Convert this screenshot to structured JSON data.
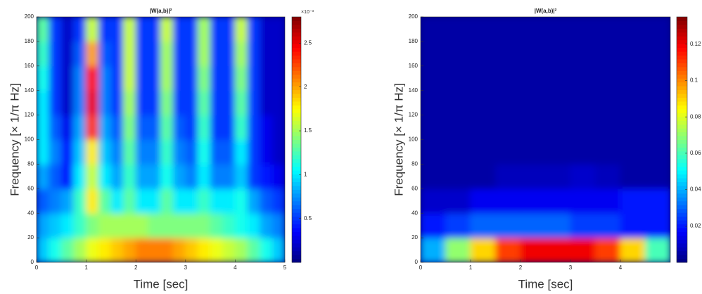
{
  "chart_data": [
    {
      "type": "heatmap",
      "title": "|W(a,b)|²",
      "xlabel": "Time [sec]",
      "ylabel": "Frequency [× 1/π Hz]",
      "colorbar_scale_label": "×10⁻³",
      "xlim": [
        0,
        5
      ],
      "ylim": [
        0,
        200
      ],
      "clim": [
        0,
        2.8
      ],
      "xticks": [
        0,
        1,
        2,
        3,
        4,
        5
      ],
      "yticks": [
        0,
        20,
        40,
        60,
        80,
        100,
        120,
        140,
        160,
        180,
        200
      ],
      "cticks": [
        0.5,
        1,
        1.5,
        2,
        2.5
      ],
      "x": [
        0.125,
        0.375,
        0.625,
        0.875,
        1.125,
        1.375,
        1.625,
        1.875,
        2.125,
        2.375,
        2.625,
        2.875,
        3.125,
        3.375,
        3.625,
        3.875,
        4.125,
        4.375,
        4.625,
        4.875
      ],
      "y": [
        10,
        30,
        50,
        70,
        90,
        110,
        130,
        150,
        170,
        190
      ],
      "values": [
        [
          0.9,
          1.1,
          1.3,
          1.5,
          1.7,
          1.8,
          1.9,
          2.0,
          2.1,
          2.1,
          2.1,
          2.0,
          1.9,
          1.8,
          1.7,
          1.6,
          1.5,
          1.3,
          1.1,
          0.9
        ],
        [
          0.8,
          0.9,
          1.0,
          1.2,
          1.4,
          1.5,
          1.5,
          1.5,
          1.5,
          1.4,
          1.4,
          1.4,
          1.4,
          1.4,
          1.3,
          1.2,
          1.1,
          1.0,
          0.8,
          0.7
        ],
        [
          0.6,
          0.7,
          0.8,
          1.2,
          1.8,
          1.3,
          1.0,
          1.3,
          1.0,
          1.0,
          1.3,
          1.0,
          1.0,
          1.2,
          1.0,
          1.0,
          1.1,
          0.8,
          0.6,
          0.5
        ],
        [
          0.8,
          0.6,
          0.4,
          1.0,
          1.6,
          1.0,
          0.8,
          1.2,
          0.8,
          0.8,
          1.1,
          0.8,
          0.7,
          1.0,
          0.7,
          0.7,
          0.9,
          0.5,
          0.4,
          0.3
        ],
        [
          1.0,
          0.7,
          0.4,
          0.9,
          1.8,
          0.9,
          0.7,
          1.3,
          0.7,
          0.7,
          1.2,
          0.7,
          0.6,
          1.1,
          0.6,
          0.6,
          1.0,
          0.5,
          0.3,
          0.2
        ],
        [
          1.0,
          0.6,
          0.3,
          0.8,
          2.3,
          0.8,
          0.6,
          1.4,
          0.6,
          0.6,
          1.3,
          0.6,
          0.5,
          1.2,
          0.5,
          0.5,
          1.2,
          0.5,
          0.3,
          0.2
        ],
        [
          1.0,
          0.5,
          0.2,
          0.7,
          2.5,
          0.7,
          0.5,
          1.5,
          0.5,
          0.5,
          1.4,
          0.5,
          0.5,
          1.3,
          0.5,
          0.5,
          1.3,
          0.5,
          0.2,
          0.2
        ],
        [
          1.1,
          0.5,
          0.2,
          0.7,
          2.4,
          0.7,
          0.5,
          1.6,
          0.5,
          0.5,
          1.5,
          0.5,
          0.5,
          1.4,
          0.5,
          0.5,
          1.4,
          0.5,
          0.2,
          0.2
        ],
        [
          1.2,
          0.5,
          0.2,
          0.6,
          2.0,
          0.6,
          0.5,
          1.6,
          0.5,
          0.5,
          1.5,
          0.5,
          0.5,
          1.5,
          0.5,
          0.5,
          1.5,
          0.5,
          0.2,
          0.2
        ],
        [
          1.3,
          0.5,
          0.2,
          0.5,
          1.6,
          0.5,
          0.5,
          1.6,
          0.5,
          0.5,
          1.6,
          0.5,
          0.5,
          1.5,
          0.5,
          0.5,
          1.6,
          0.5,
          0.2,
          0.2
        ]
      ]
    },
    {
      "type": "heatmap",
      "title": "|W(a,b)|²",
      "xlabel": "Time [sec]",
      "ylabel": "Frequency [× 1/π Hz]",
      "xlim": [
        0,
        5
      ],
      "ylim": [
        0,
        200
      ],
      "clim": [
        0,
        0.135
      ],
      "xticks": [
        0,
        1,
        2,
        3,
        4
      ],
      "yticks": [
        0,
        20,
        40,
        60,
        80,
        100,
        120,
        140,
        160,
        180,
        200
      ],
      "cticks": [
        0.02,
        0.04,
        0.06,
        0.08,
        0.1,
        0.12
      ],
      "x": [
        0.25,
        0.75,
        1.25,
        1.75,
        2.25,
        2.75,
        3.25,
        3.75,
        4.25,
        4.75
      ],
      "y": [
        10,
        30,
        50,
        70,
        90,
        110,
        130,
        150,
        170,
        190
      ],
      "values": [
        [
          0.04,
          0.07,
          0.09,
          0.11,
          0.12,
          0.12,
          0.12,
          0.11,
          0.09,
          0.06
        ],
        [
          0.02,
          0.025,
          0.03,
          0.03,
          0.03,
          0.03,
          0.025,
          0.025,
          0.02,
          0.02
        ],
        [
          0.01,
          0.01,
          0.015,
          0.015,
          0.015,
          0.015,
          0.015,
          0.015,
          0.02,
          0.02
        ],
        [
          0.005,
          0.005,
          0.005,
          0.008,
          0.008,
          0.008,
          0.01,
          0.008,
          0.005,
          0.005
        ],
        [
          0.005,
          0.005,
          0.005,
          0.005,
          0.005,
          0.005,
          0.005,
          0.005,
          0.005,
          0.005
        ],
        [
          0.005,
          0.005,
          0.005,
          0.005,
          0.005,
          0.005,
          0.005,
          0.005,
          0.005,
          0.005
        ],
        [
          0.005,
          0.005,
          0.005,
          0.005,
          0.005,
          0.005,
          0.005,
          0.005,
          0.005,
          0.005
        ],
        [
          0.005,
          0.005,
          0.005,
          0.005,
          0.005,
          0.005,
          0.005,
          0.005,
          0.005,
          0.005
        ],
        [
          0.005,
          0.005,
          0.005,
          0.005,
          0.005,
          0.005,
          0.005,
          0.005,
          0.005,
          0.005
        ],
        [
          0.005,
          0.005,
          0.005,
          0.005,
          0.005,
          0.005,
          0.005,
          0.005,
          0.005,
          0.005
        ]
      ]
    }
  ]
}
